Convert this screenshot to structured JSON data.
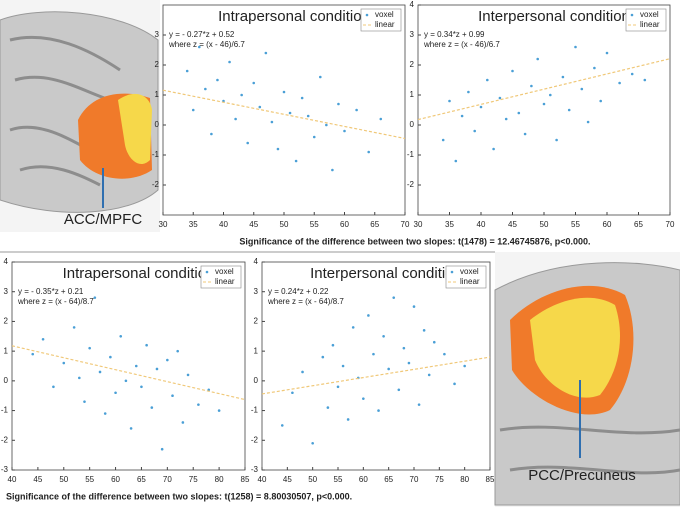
{
  "chart_data": [
    {
      "type": "scatter",
      "title": "Intrapersonal condition",
      "equation": "y = - 0.27*z + 0.52",
      "equation_note": "where z = (x - 46)/6.7",
      "xlim": [
        30,
        70
      ],
      "ylim": [
        -3,
        4
      ],
      "xticks": [
        30,
        35,
        40,
        45,
        50,
        55,
        60,
        65,
        70
      ],
      "yticks": [
        -2,
        -1,
        0,
        1,
        2,
        3
      ],
      "legend": "upper right",
      "series": [
        {
          "name": "voxel",
          "color": "#4a9fd6",
          "x": [
            34,
            35,
            36,
            37,
            38,
            39,
            40,
            41,
            42,
            43,
            44,
            45,
            46,
            47,
            48,
            49,
            50,
            51,
            52,
            53,
            54,
            55,
            56,
            57,
            58,
            59,
            60,
            62,
            64,
            66
          ],
          "values": [
            1.8,
            0.5,
            2.6,
            1.2,
            -0.3,
            1.5,
            0.8,
            2.1,
            0.2,
            1.0,
            -0.6,
            1.4,
            0.6,
            2.4,
            0.1,
            -0.8,
            1.1,
            0.4,
            -1.2,
            0.9,
            0.3,
            -0.4,
            1.6,
            0.0,
            -1.5,
            0.7,
            -0.2,
            0.5,
            -0.9,
            0.2
          ]
        },
        {
          "name": "linear",
          "color": "#f0c878",
          "x": [
            30,
            70
          ],
          "values": [
            1.16,
            -0.45
          ]
        }
      ]
    },
    {
      "type": "scatter",
      "title": "Interpersonal condition",
      "equation": "y = 0.34*z + 0.99",
      "equation_note": "where z = (x - 46)/6.7",
      "xlim": [
        30,
        70
      ],
      "ylim": [
        -3,
        4
      ],
      "xticks": [
        30,
        35,
        40,
        45,
        50,
        55,
        60,
        65,
        70
      ],
      "yticks": [
        -2,
        -1,
        0,
        1,
        2,
        3,
        4
      ],
      "legend": "upper right",
      "series": [
        {
          "name": "voxel",
          "color": "#4a9fd6",
          "x": [
            34,
            35,
            36,
            37,
            38,
            39,
            40,
            41,
            42,
            43,
            44,
            45,
            46,
            47,
            48,
            49,
            50,
            51,
            52,
            53,
            54,
            55,
            56,
            57,
            58,
            59,
            60,
            62,
            64,
            66
          ],
          "values": [
            -0.5,
            0.8,
            -1.2,
            0.3,
            1.1,
            -0.2,
            0.6,
            1.5,
            -0.8,
            0.9,
            0.2,
            1.8,
            0.4,
            -0.3,
            1.3,
            2.2,
            0.7,
            1.0,
            -0.5,
            1.6,
            0.5,
            2.6,
            1.2,
            0.1,
            1.9,
            0.8,
            2.4,
            1.4,
            1.7,
            1.5
          ]
        },
        {
          "name": "linear",
          "color": "#f0c878",
          "x": [
            30,
            70
          ],
          "values": [
            0.18,
            2.21
          ]
        }
      ]
    },
    {
      "type": "scatter",
      "title": "Intrapersonal condition",
      "equation": "y = - 0.35*z + 0.21",
      "equation_note": "where z = (x - 64)/8.7",
      "xlim": [
        40,
        85
      ],
      "ylim": [
        -3,
        4
      ],
      "xticks": [
        40,
        45,
        50,
        55,
        60,
        65,
        70,
        75,
        80,
        85
      ],
      "yticks": [
        -3,
        -2,
        -1,
        0,
        1,
        2,
        3,
        4
      ],
      "legend": "upper right",
      "series": [
        {
          "name": "voxel",
          "color": "#4a9fd6",
          "x": [
            44,
            46,
            48,
            50,
            52,
            53,
            54,
            55,
            56,
            57,
            58,
            59,
            60,
            61,
            62,
            63,
            64,
            65,
            66,
            67,
            68,
            69,
            70,
            71,
            72,
            73,
            74,
            76,
            78,
            80
          ],
          "values": [
            0.9,
            1.4,
            -0.2,
            0.6,
            1.8,
            0.1,
            -0.7,
            1.1,
            2.8,
            0.3,
            -1.1,
            0.8,
            -0.4,
            1.5,
            0.0,
            -1.6,
            0.5,
            -0.2,
            1.2,
            -0.9,
            0.4,
            -2.3,
            0.7,
            -0.5,
            1.0,
            -1.4,
            0.2,
            -0.8,
            -0.3,
            -1.0
          ]
        },
        {
          "name": "linear",
          "color": "#f0c878",
          "x": [
            40,
            85
          ],
          "values": [
            1.18,
            -0.63
          ]
        }
      ]
    },
    {
      "type": "scatter",
      "title": "Interpersonal condition",
      "equation": "y = 0.24*z + 0.22",
      "equation_note": "where z = (x - 64)/8.7",
      "xlim": [
        40,
        85
      ],
      "ylim": [
        -3,
        4
      ],
      "xticks": [
        40,
        45,
        50,
        55,
        60,
        65,
        70,
        75,
        80,
        85
      ],
      "yticks": [
        -3,
        -2,
        -1,
        0,
        1,
        2,
        3,
        4
      ],
      "legend": "upper right",
      "series": [
        {
          "name": "voxel",
          "color": "#4a9fd6",
          "x": [
            44,
            46,
            48,
            50,
            52,
            53,
            54,
            55,
            56,
            57,
            58,
            59,
            60,
            61,
            62,
            63,
            64,
            65,
            66,
            67,
            68,
            69,
            70,
            71,
            72,
            73,
            74,
            76,
            78,
            80
          ],
          "values": [
            -1.5,
            -0.4,
            0.3,
            -2.1,
            0.8,
            -0.9,
            1.2,
            -0.2,
            0.5,
            -1.3,
            1.8,
            0.1,
            -0.6,
            2.2,
            0.9,
            -1.0,
            1.5,
            0.4,
            2.8,
            -0.3,
            1.1,
            0.6,
            2.5,
            -0.8,
            1.7,
            0.2,
            1.3,
            0.9,
            -0.1,
            0.5
          ]
        },
        {
          "name": "linear",
          "color": "#f0c878",
          "x": [
            40,
            85
          ],
          "values": [
            -0.44,
            0.8
          ]
        }
      ]
    }
  ],
  "labels": {
    "top_region": "ACC/MPFC",
    "bottom_region": "PCC/Precuneus",
    "top_significance": "Significance of the difference between two slopes: t(1478) = 12.46745876, p<0.000.",
    "bottom_significance": "Significance of the difference between two slopes: t(1258) = 8.80030507, p<0.000."
  }
}
